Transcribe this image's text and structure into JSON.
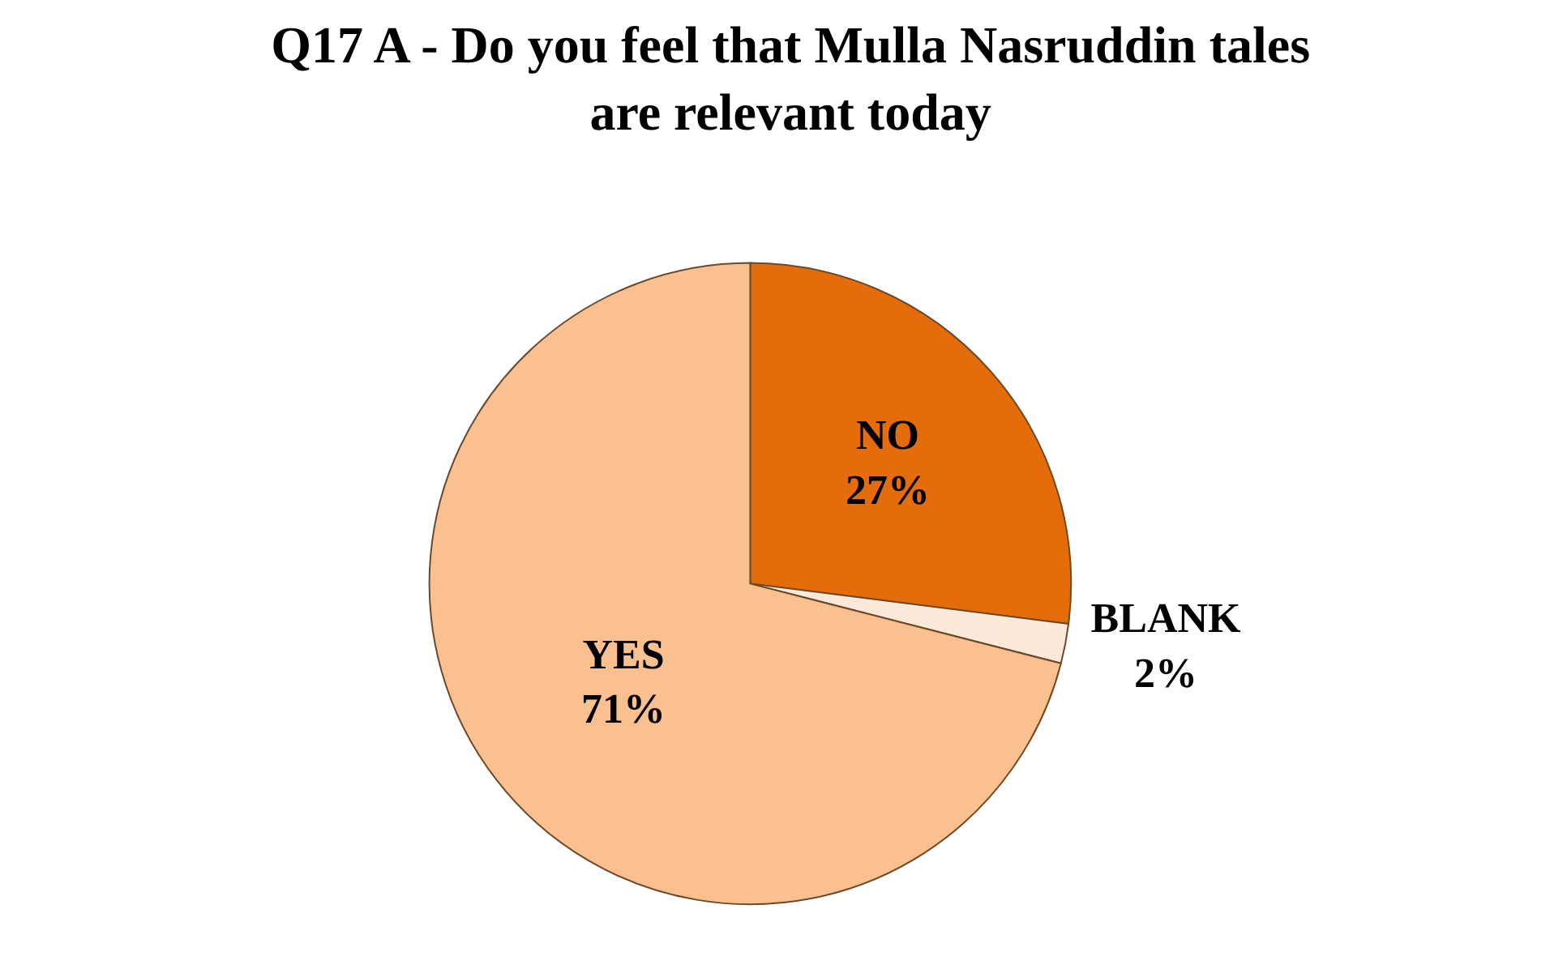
{
  "chart_data": {
    "type": "pie",
    "title": "Q17 A - Do you feel that Mulla Nasruddin tales\nare relevant today",
    "categories": [
      "NO",
      "BLANK",
      "YES"
    ],
    "values": [
      27,
      2,
      71
    ],
    "value_labels": [
      "27%",
      "2%",
      "71%"
    ],
    "colors": [
      "#e46c0a",
      "#fde9d9",
      "#fac090"
    ],
    "legend": false
  }
}
